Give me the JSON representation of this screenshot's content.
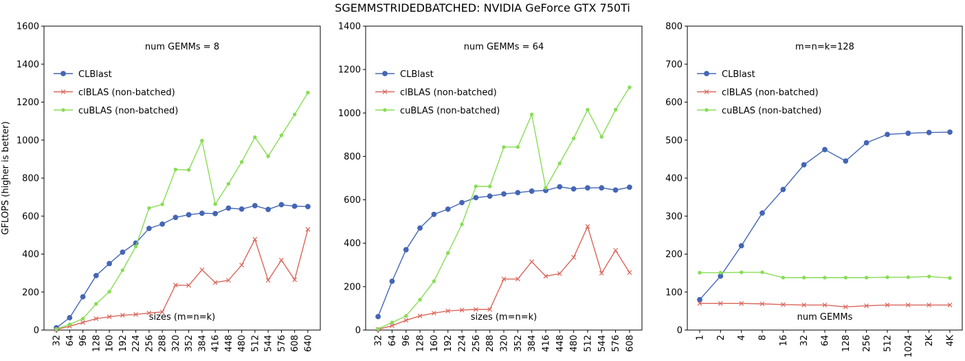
{
  "title": "SGEMMSTRIDEDBATCHED: NVIDIA GeForce GTX 750Ti",
  "ylabel": "GFLOPS (higher is better)",
  "colors": {
    "CLBlast": "#4466b4",
    "clBLAS (non-batched)": "#d9665b",
    "cuBLAS (non-batched)": "#88dd55"
  },
  "chart_data": [
    {
      "type": "line",
      "annotation": "num GEMMs = 8",
      "xlabel": "sizes (m=n=k)",
      "categories": [
        "32",
        "64",
        "96",
        "128",
        "160",
        "192",
        "224",
        "256",
        "288",
        "320",
        "352",
        "384",
        "416",
        "448",
        "480",
        "512",
        "544",
        "576",
        "608",
        "640"
      ],
      "ylim": [
        0,
        1600
      ],
      "yticks": [
        0,
        200,
        400,
        600,
        800,
        1000,
        1200,
        1400,
        1600
      ],
      "legend": "upper-left",
      "series": [
        {
          "name": "CLBlast",
          "marker": "circle",
          "values": [
            12,
            65,
            175,
            287,
            350,
            410,
            458,
            535,
            558,
            593,
            607,
            615,
            613,
            642,
            637,
            655,
            635,
            660,
            652,
            650
          ]
        },
        {
          "name": "clBLAS (non-batched)",
          "marker": "x",
          "values": [
            3,
            20,
            40,
            60,
            70,
            78,
            82,
            90,
            95,
            237,
            235,
            317,
            250,
            262,
            342,
            478,
            262,
            368,
            265,
            530
          ]
        },
        {
          "name": "cuBLAS (non-batched)",
          "marker": "dot",
          "values": [
            5,
            30,
            60,
            138,
            202,
            315,
            440,
            642,
            662,
            845,
            843,
            997,
            663,
            770,
            885,
            1015,
            915,
            1025,
            1135,
            1250
          ]
        }
      ]
    },
    {
      "type": "line",
      "annotation": "num GEMMs = 64",
      "xlabel": "sizes (m=n=k)",
      "categories": [
        "32",
        "64",
        "96",
        "128",
        "160",
        "192",
        "224",
        "256",
        "288",
        "320",
        "352",
        "384",
        "416",
        "448",
        "480",
        "512",
        "544",
        "576",
        "608"
      ],
      "ylim": [
        0,
        1400
      ],
      "yticks": [
        0,
        200,
        400,
        600,
        800,
        1000,
        1200,
        1400
      ],
      "legend": "upper-left",
      "series": [
        {
          "name": "CLBlast",
          "marker": "circle",
          "values": [
            62,
            225,
            370,
            470,
            533,
            557,
            587,
            610,
            617,
            627,
            633,
            640,
            643,
            660,
            650,
            655,
            655,
            645,
            658
          ]
        },
        {
          "name": "clBLAS (non-batched)",
          "marker": "x",
          "values": [
            3,
            20,
            45,
            65,
            78,
            88,
            92,
            95,
            95,
            235,
            235,
            315,
            248,
            260,
            335,
            477,
            262,
            367,
            265
          ]
        },
        {
          "name": "cuBLAS (non-batched)",
          "marker": "dot",
          "values": [
            5,
            35,
            65,
            140,
            225,
            355,
            487,
            662,
            662,
            843,
            843,
            993,
            655,
            768,
            883,
            1015,
            890,
            1015,
            1118
          ]
        }
      ]
    },
    {
      "type": "line",
      "annotation": "m=n=k=128",
      "xlabel": "num GEMMs",
      "categories": [
        "1",
        "2",
        "4",
        "8",
        "16",
        "32",
        "64",
        "128",
        "256",
        "512",
        "1024",
        "2K",
        "4K"
      ],
      "ylim": [
        0,
        800
      ],
      "yticks": [
        0,
        100,
        200,
        300,
        400,
        500,
        600,
        700,
        800
      ],
      "legend": "upper-left",
      "series": [
        {
          "name": "CLBlast",
          "marker": "circle",
          "values": [
            80,
            142,
            222,
            308,
            370,
            435,
            475,
            445,
            493,
            515,
            518,
            520,
            521
          ]
        },
        {
          "name": "clBLAS (non-batched)",
          "marker": "x",
          "values": [
            70,
            70,
            70,
            69,
            67,
            66,
            66,
            61,
            64,
            66,
            66,
            66,
            66
          ]
        },
        {
          "name": "cuBLAS (non-batched)",
          "marker": "dot",
          "values": [
            151,
            151,
            152,
            152,
            138,
            138,
            138,
            138,
            138,
            139,
            139,
            141,
            137
          ]
        }
      ]
    }
  ]
}
